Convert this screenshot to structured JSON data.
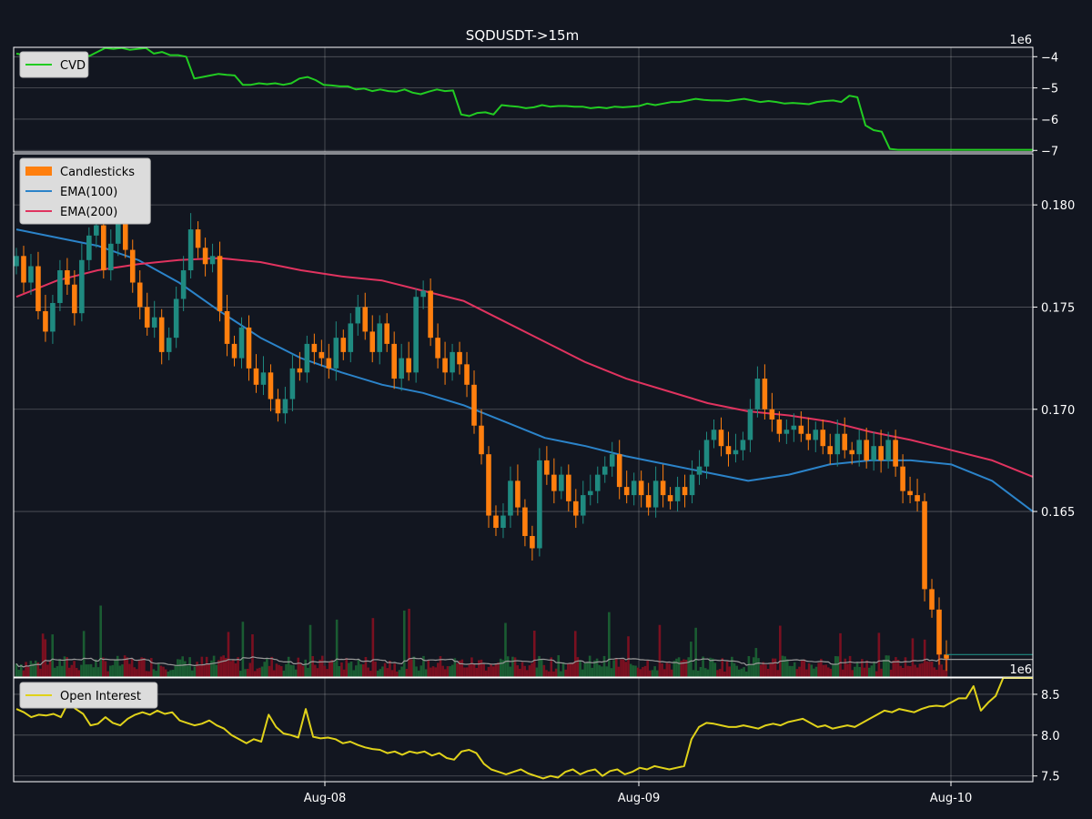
{
  "chart_data": [
    {
      "panel": "cvd",
      "type": "line",
      "title": "SQDUSDT->15m",
      "exponent_label": "1e6",
      "ylim": [
        -7.05,
        -3.7
      ],
      "yticks": [
        -4,
        -5,
        -6,
        -7
      ],
      "ytick_labels": [
        "−4",
        "−5",
        "−6",
        "−7"
      ],
      "grid": true,
      "legend": "top-left",
      "colors": {
        "line": "#22cc22"
      },
      "series": [
        {
          "name": "CVD",
          "values": [
            -3.9,
            -3.95,
            -3.88,
            -3.9,
            -4.1,
            -4.15,
            -4.05,
            -4.1,
            -3.92,
            -3.98,
            -3.85,
            -3.72,
            -3.75,
            -3.72,
            -3.78,
            -3.75,
            -3.72,
            -3.9,
            -3.85,
            -3.95,
            -3.95,
            -4.0,
            -4.7,
            -4.65,
            -4.6,
            -4.55,
            -4.58,
            -4.6,
            -4.9,
            -4.9,
            -4.85,
            -4.88,
            -4.85,
            -4.9,
            -4.85,
            -4.7,
            -4.65,
            -4.75,
            -4.9,
            -4.92,
            -4.95,
            -4.95,
            -5.05,
            -5.02,
            -5.1,
            -5.05,
            -5.1,
            -5.12,
            -5.05,
            -5.15,
            -5.2,
            -5.12,
            -5.05,
            -5.1,
            -5.08,
            -5.85,
            -5.9,
            -5.8,
            -5.78,
            -5.85,
            -5.55,
            -5.58,
            -5.6,
            -5.65,
            -5.62,
            -5.55,
            -5.6,
            -5.58,
            -5.58,
            -5.6,
            -5.6,
            -5.65,
            -5.62,
            -5.65,
            -5.6,
            -5.62,
            -5.6,
            -5.58,
            -5.5,
            -5.55,
            -5.5,
            -5.45,
            -5.45,
            -5.4,
            -5.35,
            -5.38,
            -5.4,
            -5.4,
            -5.42,
            -5.38,
            -5.35,
            -5.4,
            -5.45,
            -5.42,
            -5.45,
            -5.5,
            -5.48,
            -5.5,
            -5.52,
            -5.45,
            -5.42,
            -5.4,
            -5.45,
            -5.25,
            -5.3,
            -6.2,
            -6.35,
            -6.4,
            -6.95,
            -6.98,
            -6.98,
            -6.98,
            -6.98,
            -6.98,
            -6.98,
            -6.98
          ]
        }
      ]
    },
    {
      "panel": "price",
      "type": "candlestick",
      "ylim": [
        0.1569,
        0.1825
      ],
      "yticks": [
        0.165,
        0.17,
        0.175,
        0.18
      ],
      "ytick_labels": [
        "0.165",
        "0.170",
        "0.175",
        "0.180"
      ],
      "grid": true,
      "legend": "top-left",
      "colors": {
        "up": "#1f8a80",
        "down": "#ff7f0e",
        "ema100": "#2b83c9",
        "ema200": "#e0335f",
        "volume_up": "#1a5c32",
        "volume_down": "#7a1020",
        "volume_ma": "#9a9a9a",
        "last_price": "#1f8a80"
      },
      "close": [
        0.1775,
        0.1762,
        0.177,
        0.1748,
        0.1738,
        0.1752,
        0.1768,
        0.1761,
        0.1747,
        0.1773,
        0.1785,
        0.179,
        0.1768,
        0.1781,
        0.1795,
        0.1778,
        0.1762,
        0.175,
        0.174,
        0.1745,
        0.1728,
        0.1735,
        0.1754,
        0.1768,
        0.1788,
        0.1779,
        0.1771,
        0.1775,
        0.1748,
        0.1732,
        0.1725,
        0.174,
        0.172,
        0.1712,
        0.1718,
        0.1705,
        0.1698,
        0.1705,
        0.172,
        0.1718,
        0.1732,
        0.1728,
        0.1725,
        0.172,
        0.1735,
        0.1728,
        0.1742,
        0.175,
        0.1738,
        0.1728,
        0.1742,
        0.1732,
        0.1715,
        0.1725,
        0.1718,
        0.1755,
        0.1758,
        0.1735,
        0.1725,
        0.1718,
        0.1728,
        0.1722,
        0.1712,
        0.1692,
        0.1678,
        0.1648,
        0.1642,
        0.1648,
        0.1665,
        0.1652,
        0.1638,
        0.1632,
        0.1675,
        0.1668,
        0.166,
        0.1668,
        0.1655,
        0.1648,
        0.1658,
        0.166,
        0.1668,
        0.1672,
        0.1678,
        0.1662,
        0.1658,
        0.1665,
        0.1658,
        0.1652,
        0.1665,
        0.1658,
        0.1655,
        0.1662,
        0.1658,
        0.1668,
        0.1672,
        0.1685,
        0.169,
        0.1682,
        0.1678,
        0.168,
        0.1685,
        0.17,
        0.1715,
        0.17,
        0.1695,
        0.1688,
        0.169,
        0.1692,
        0.1688,
        0.1685,
        0.169,
        0.1682,
        0.1678,
        0.1688,
        0.168,
        0.1678,
        0.1685,
        0.1675,
        0.1682,
        0.1675,
        0.1685,
        0.1672,
        0.166,
        0.1658,
        0.1655,
        0.1612,
        0.1602,
        0.158,
        0.1578
      ],
      "ema100_values": [
        0.1788,
        0.1784,
        0.178,
        0.1773,
        0.1762,
        0.1748,
        0.1735,
        0.1725,
        0.1718,
        0.1712,
        0.1708,
        0.1702,
        0.1694,
        0.1686,
        0.1682,
        0.1677,
        0.1673,
        0.1669,
        0.1665,
        0.1668,
        0.1673,
        0.1675,
        0.1675,
        0.1673,
        0.1665,
        0.165
      ],
      "ema200_values": [
        0.1755,
        0.1763,
        0.1768,
        0.1771,
        0.1773,
        0.1774,
        0.1772,
        0.1768,
        0.1765,
        0.1763,
        0.1758,
        0.1753,
        0.1743,
        0.1733,
        0.1723,
        0.1715,
        0.1709,
        0.1703,
        0.1699,
        0.1697,
        0.1694,
        0.1689,
        0.1685,
        0.168,
        0.1675,
        0.1667
      ],
      "last_price": 0.158,
      "series": [
        {
          "name": "Candlesticks"
        },
        {
          "name": "EMA(100)"
        },
        {
          "name": "EMA(200)"
        }
      ]
    },
    {
      "panel": "open_interest",
      "type": "line",
      "exponent_label": "1e6",
      "xlabel": "",
      "ylim": [
        7.43,
        8.7
      ],
      "yticks": [
        7.5,
        8.0,
        8.5
      ],
      "ytick_labels": [
        "7.5",
        "8.0",
        "8.5"
      ],
      "xtick_labels": [
        "Aug-08",
        "Aug-09",
        "Aug-10"
      ],
      "grid": true,
      "legend": "top-left",
      "colors": {
        "line": "#e0d21a"
      },
      "series": [
        {
          "name": "Open Interest",
          "values": [
            8.32,
            8.28,
            8.22,
            8.25,
            8.24,
            8.26,
            8.22,
            8.4,
            8.32,
            8.26,
            8.12,
            8.14,
            8.22,
            8.15,
            8.12,
            8.2,
            8.25,
            8.28,
            8.25,
            8.3,
            8.26,
            8.28,
            8.18,
            8.15,
            8.12,
            8.14,
            8.18,
            8.12,
            8.08,
            8.0,
            7.95,
            7.9,
            7.95,
            7.92,
            8.25,
            8.1,
            8.02,
            8.0,
            7.97,
            8.32,
            7.98,
            7.96,
            7.97,
            7.95,
            7.9,
            7.92,
            7.88,
            7.85,
            7.83,
            7.82,
            7.78,
            7.8,
            7.76,
            7.8,
            7.78,
            7.8,
            7.75,
            7.78,
            7.72,
            7.7,
            7.8,
            7.82,
            7.78,
            7.65,
            7.58,
            7.55,
            7.52,
            7.55,
            7.58,
            7.53,
            7.5,
            7.47,
            7.5,
            7.48,
            7.55,
            7.58,
            7.52,
            7.56,
            7.58,
            7.5,
            7.56,
            7.58,
            7.52,
            7.55,
            7.6,
            7.58,
            7.62,
            7.6,
            7.58,
            7.6,
            7.62,
            7.95,
            8.1,
            8.15,
            8.14,
            8.12,
            8.1,
            8.1,
            8.12,
            8.1,
            8.08,
            8.12,
            8.14,
            8.12,
            8.16,
            8.18,
            8.2,
            8.15,
            8.1,
            8.12,
            8.08,
            8.1,
            8.12,
            8.1,
            8.15,
            8.2,
            8.25,
            8.3,
            8.28,
            8.32,
            8.3,
            8.28,
            8.32,
            8.35,
            8.36,
            8.35,
            8.4,
            8.45,
            8.45,
            8.6,
            8.3,
            8.4,
            8.48,
            8.7,
            8.7,
            8.7,
            8.7,
            8.7
          ]
        }
      ]
    }
  ]
}
